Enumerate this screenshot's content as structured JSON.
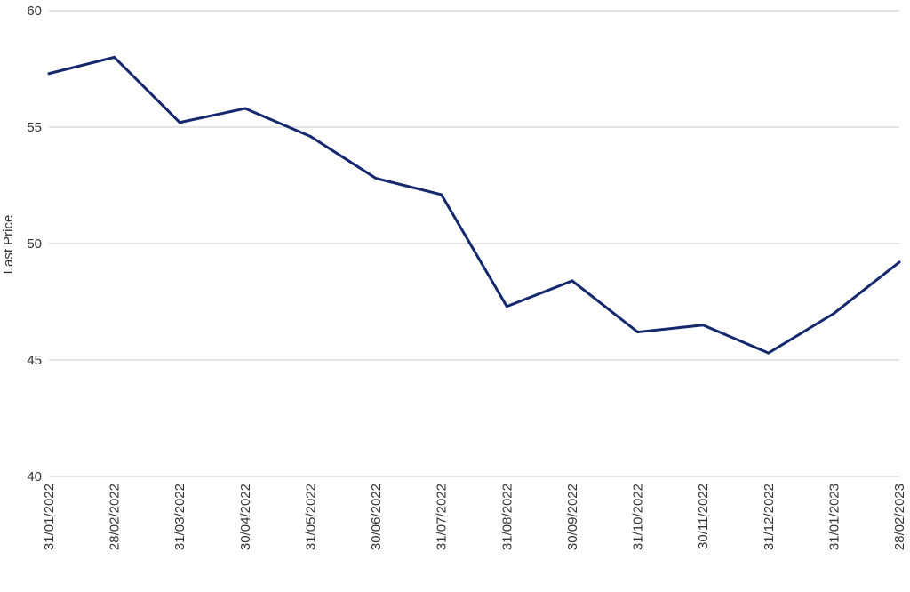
{
  "chart_data": {
    "type": "line",
    "title": "",
    "xlabel": "",
    "ylabel": "Last Price",
    "ylim": [
      40,
      60
    ],
    "yticks": [
      40,
      45,
      50,
      55,
      60
    ],
    "grid": true,
    "legend": "none",
    "categories": [
      "31/01/2022",
      "28/02/2022",
      "31/03/2022",
      "30/04/2022",
      "31/05/2022",
      "30/06/2022",
      "31/07/2022",
      "31/08/2022",
      "30/09/2022",
      "31/10/2022",
      "30/11/2022",
      "31/12/2022",
      "31/01/2023",
      "28/02/2023"
    ],
    "series": [
      {
        "color": "#14286e",
        "values": [
          57.3,
          58.0,
          55.2,
          55.8,
          54.6,
          52.8,
          52.1,
          47.3,
          48.4,
          46.2,
          46.5,
          45.3,
          47.0,
          49.2
        ]
      }
    ]
  }
}
